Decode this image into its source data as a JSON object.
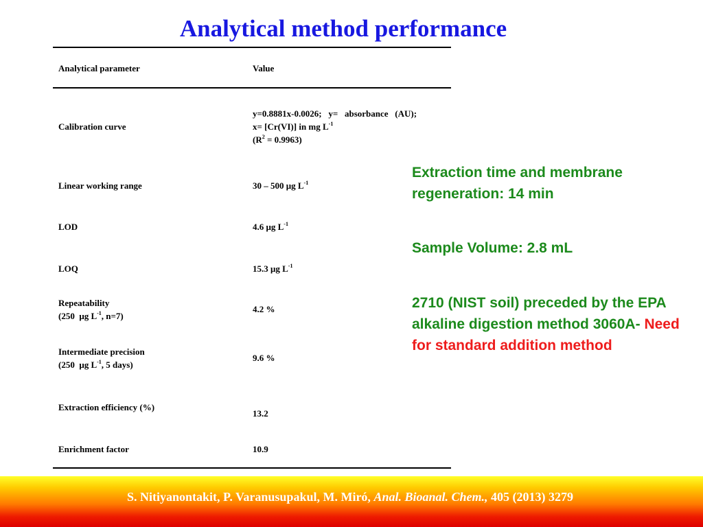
{
  "title": "Analytical method performance",
  "table": {
    "header": {
      "param": "Analytical parameter",
      "value": "Value"
    },
    "rows": [
      {
        "param": "Calibration curve",
        "value_line1": "y=0.8881x-0.0026;   y=   absorbance   (AU);",
        "value_line2_a": "x= [Cr(VI)] in mg L",
        "value_line2_sup": "-1",
        "value_line3_a": "(R",
        "value_line3_sup": "2",
        "value_line3_b": " = 0.9963)"
      },
      {
        "param": "Linear working range",
        "value_a": "30 – 500 μg L",
        "value_sup": "-1"
      },
      {
        "param": "LOD",
        "value_a": "4.6 μg L",
        "value_sup": "-1"
      },
      {
        "param": "LOQ",
        "value_a": "15.3 μg L",
        "value_sup": "-1"
      },
      {
        "param": "Repeatability",
        "param_line2_a": "(250  μg L",
        "param_line2_sup": "-1",
        "param_line2_b": ", n=7)",
        "value": "4.2 %"
      },
      {
        "param": "Intermediate precision",
        "param_line2_a": "(250  μg L",
        "param_line2_sup": "-1",
        "param_line2_b": ", 5 days)",
        "value": "9.6 %"
      },
      {
        "param": "Extraction efficiency (%)",
        "value": "13.2"
      },
      {
        "param": "Enrichment factor",
        "value": "10.9"
      }
    ]
  },
  "notes": {
    "note1": "Extraction time and membrane regeneration: 14 min",
    "note2": "Sample Volume: 2.8 mL",
    "note3_a": "2710 (NIST soil) preceded by the EPA alkaline digestion method 3060A-",
    "note3_b": "Need for standard addition method"
  },
  "footer": {
    "authors": "S. Nitiyanontakit, P. Varanusupakul, M. Miró, ",
    "journal": "Anal. Bioanal. Chem.,",
    "ref": " 405 (2013) 3279"
  },
  "colors": {
    "title": "#1818e0",
    "notes_green": "#1c8a1c",
    "notes_red": "#ee1c1c",
    "footer_text": "#ffffff"
  }
}
